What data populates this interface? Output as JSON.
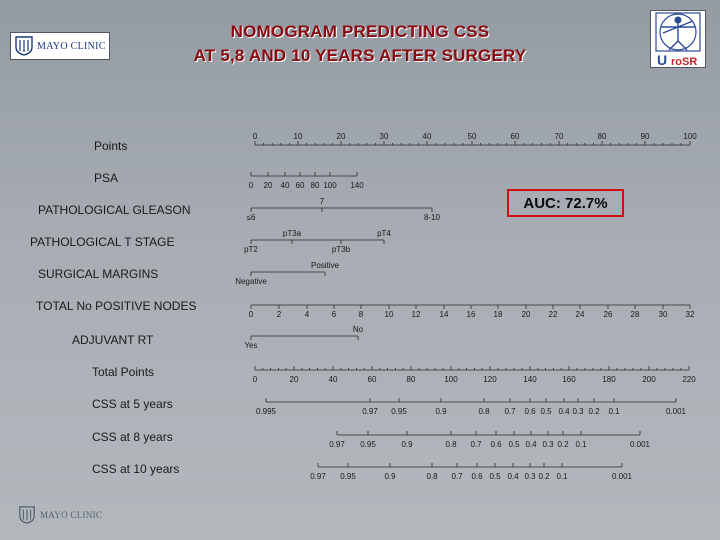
{
  "title_line1": "NOMOGRAM PREDICTING CSS",
  "title_line2": "AT 5,8 AND 10 YEARS AFTER SURGERY",
  "logo_text": "MAYO CLINIC",
  "vitruvian_letter": "U",
  "vitruvian_text": "roSR",
  "auc_label": "AUC: 72.7%",
  "colors": {
    "title": "#8a0a12",
    "auc_border": "#d01010",
    "axis": "#2a2a2a",
    "text": "#1a1a1a"
  },
  "rows": [
    {
      "id": "points",
      "label": "Points"
    },
    {
      "id": "psa",
      "label": "PSA"
    },
    {
      "id": "gleason",
      "label": "PATHOLOGICAL GLEASON"
    },
    {
      "id": "tstage",
      "label": "PATHOLOGICAL T STAGE"
    },
    {
      "id": "margins",
      "label": "SURGICAL MARGINS"
    },
    {
      "id": "nodes",
      "label": "TOTAL No POSITIVE NODES"
    },
    {
      "id": "adjrt",
      "label": "ADJUVANT RT"
    },
    {
      "id": "total",
      "label": "Total Points"
    },
    {
      "id": "css5",
      "label": "CSS at 5 years"
    },
    {
      "id": "css8",
      "label": "CSS at 8 years"
    },
    {
      "id": "css10",
      "label": "CSS at 10 years"
    }
  ],
  "scales": {
    "points": {
      "range": [
        0,
        100
      ],
      "ticks": [
        "0",
        "10",
        "20",
        "30",
        "40",
        "50",
        "60",
        "70",
        "80",
        "90",
        "100"
      ]
    },
    "psa": {
      "ticks": [
        "0",
        "20",
        "40",
        "60",
        "80",
        "100",
        "140"
      ]
    },
    "gleason": {
      "ticks": [
        "7",
        "≤6",
        "8-10"
      ]
    },
    "tstage": {
      "ticks": [
        "pT3a",
        "pT4",
        "pT2",
        "pT3b"
      ]
    },
    "margins": {
      "ticks": [
        "Positive",
        "Negative"
      ]
    },
    "nodes": {
      "ticks": [
        "0",
        "2",
        "4",
        "6",
        "8",
        "10",
        "12",
        "14",
        "16",
        "18",
        "20",
        "22",
        "24",
        "26",
        "28",
        "30",
        "32"
      ]
    },
    "adjrt": {
      "ticks": [
        "No",
        "Yes"
      ]
    },
    "total": {
      "ticks": [
        "0",
        "20",
        "40",
        "60",
        "80",
        "100",
        "120",
        "140",
        "160",
        "180",
        "200",
        "220"
      ]
    },
    "css5": {
      "ticks": [
        "0.995",
        "0.97",
        "0.95",
        "0.9",
        "0.8",
        "0.7",
        "0.6",
        "0.5",
        "0.4",
        "0.3",
        "0.2",
        "0.1",
        "0.001"
      ]
    },
    "css8": {
      "ticks": [
        "0.97",
        "0.95",
        "0.9",
        "0.8",
        "0.7",
        "0.6",
        "0.5",
        "0.4",
        "0.3",
        "0.2",
        "0.1",
        "0.001"
      ]
    },
    "css10": {
      "ticks": [
        "0.97",
        "0.95",
        "0.9",
        "0.8",
        "0.7",
        "0.6",
        "0.5",
        "0.4",
        "0.3",
        "0.2",
        "0.1",
        "0.001"
      ]
    }
  }
}
